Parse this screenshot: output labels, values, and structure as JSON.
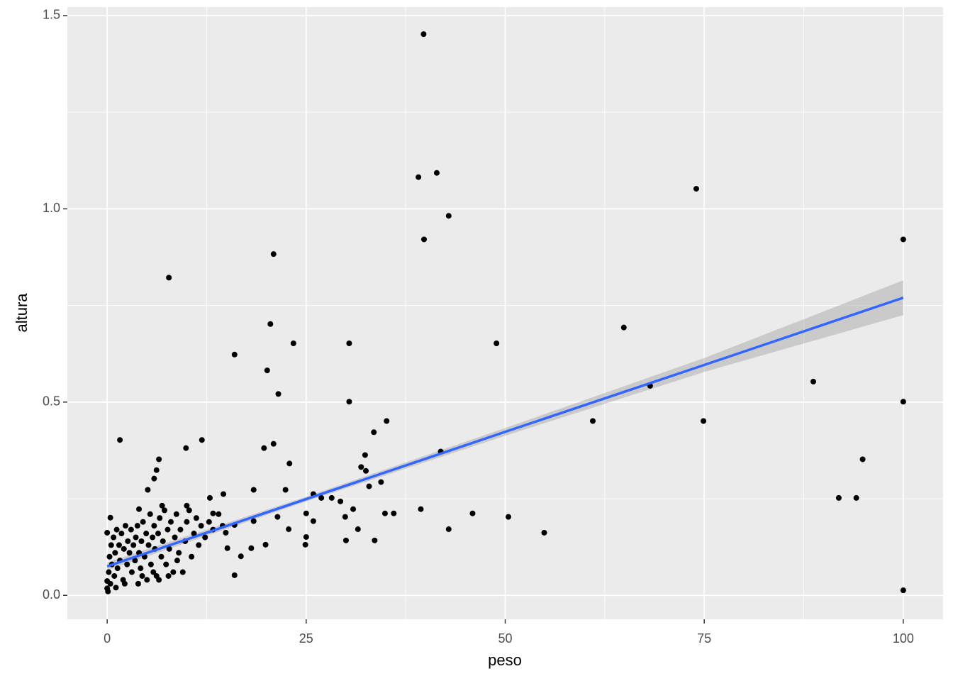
{
  "chart_data": {
    "type": "scatter",
    "x_label": "peso",
    "y_label": "altura",
    "xlim": [
      -5,
      105
    ],
    "ylim": [
      -0.062,
      1.522
    ],
    "xticks": [
      0,
      25,
      50,
      75,
      100
    ],
    "yticks": [
      {
        "value": 0,
        "label": "0.0"
      },
      0.5,
      {
        "value": 1,
        "label": "1.0"
      },
      1.5
    ],
    "x_minor_grid": [
      12.5,
      37.5,
      62.5,
      87.5
    ],
    "y_minor_grid": [
      0.25,
      0.75,
      1.25
    ],
    "grid": true,
    "color": "#000000",
    "x": [
      39.75,
      39.1,
      41.4,
      42.9,
      39.8,
      74.0,
      100,
      100,
      100,
      7.75,
      20.9,
      20.5,
      23.4,
      30.4,
      48.9,
      16.0,
      20.1,
      21.5,
      30.4,
      64.9,
      68.2,
      88.7,
      61.0,
      74.9,
      35.1,
      33.5,
      41.9,
      94.9,
      91.9,
      94.1,
      1.6,
      11.9,
      9.9,
      20.9,
      19.7,
      22.9,
      6.5,
      32.4,
      31.9,
      32.5,
      32.9,
      34.4,
      25.9,
      22.4,
      18.4,
      14.6,
      12.9,
      39.4,
      45.9,
      50.4,
      54.9,
      42.9,
      34.9,
      36.0,
      33.6,
      30.0,
      31.5,
      29.9,
      30.9,
      28.2,
      29.3,
      26.9,
      24.9,
      25.0,
      25.9,
      25.0,
      22.8,
      21.4,
      19.9,
      18.1,
      16.8,
      16.0,
      15.1,
      14.9,
      13.3,
      16.0,
      18.4,
      6.2,
      5.9,
      5.1,
      10.0,
      6.9,
      4.0,
      0.4,
      0,
      0,
      0,
      0.2,
      0.3,
      0.5,
      0.6,
      0.8,
      0.9,
      1.0,
      1.2,
      1.3,
      1.5,
      1.6,
      1.8,
      2.0,
      2.1,
      2.3,
      2.5,
      2.6,
      2.8,
      3.0,
      3.1,
      3.3,
      3.5,
      3.6,
      3.8,
      4.0,
      4.2,
      4.3,
      4.5,
      4.7,
      4.9,
      5.0,
      5.2,
      5.4,
      5.5,
      5.7,
      5.9,
      6.0,
      6.2,
      6.4,
      6.6,
      6.8,
      7.0,
      7.2,
      7.4,
      7.6,
      7.8,
      8.0,
      8.3,
      8.5,
      8.7,
      9.0,
      9.2,
      9.5,
      9.8,
      10.0,
      10.3,
      10.6,
      10.9,
      11.2,
      11.5,
      11.8,
      12.3,
      12.8,
      13.3,
      14.0,
      14.5,
      2.2,
      3.9,
      6.5,
      1.1,
      0.1,
      0.4,
      5.8,
      8.8,
      4.4,
      7.7
    ],
    "values": [
      1.452,
      1.082,
      1.093,
      0.982,
      0.921,
      1.052,
      0.921,
      0.501,
      0.013,
      0.822,
      0.883,
      0.702,
      0.652,
      0.652,
      0.652,
      0.623,
      0.582,
      0.521,
      0.501,
      0.693,
      0.542,
      0.553,
      0.451,
      0.451,
      0.451,
      0.422,
      0.372,
      0.352,
      0.252,
      0.252,
      0.402,
      0.402,
      0.381,
      0.392,
      0.381,
      0.341,
      0.352,
      0.363,
      0.332,
      0.322,
      0.282,
      0.293,
      0.262,
      0.273,
      0.273,
      0.262,
      0.252,
      0.223,
      0.212,
      0.203,
      0.162,
      0.171,
      0.212,
      0.212,
      0.142,
      0.142,
      0.171,
      0.203,
      0.223,
      0.252,
      0.243,
      0.252,
      0.131,
      0.212,
      0.192,
      0.151,
      0.171,
      0.203,
      0.131,
      0.122,
      0.101,
      0.052,
      0.122,
      0.162,
      0.212,
      0.182,
      0.192,
      0.324,
      0.302,
      0.273,
      0.232,
      0.232,
      0.223,
      0.201,
      0.162,
      0.037,
      0.018,
      0.06,
      0.1,
      0.13,
      0.08,
      0.15,
      0.05,
      0.11,
      0.17,
      0.07,
      0.13,
      0.09,
      0.16,
      0.04,
      0.12,
      0.18,
      0.08,
      0.14,
      0.11,
      0.17,
      0.06,
      0.13,
      0.09,
      0.15,
      0.18,
      0.11,
      0.07,
      0.14,
      0.19,
      0.1,
      0.16,
      0.04,
      0.13,
      0.21,
      0.08,
      0.15,
      0.18,
      0.12,
      0.05,
      0.16,
      0.2,
      0.1,
      0.14,
      0.22,
      0.08,
      0.17,
      0.12,
      0.19,
      0.06,
      0.15,
      0.21,
      0.11,
      0.17,
      0.06,
      0.14,
      0.19,
      0.22,
      0.1,
      0.16,
      0.2,
      0.13,
      0.18,
      0.15,
      0.19,
      0.17,
      0.21,
      0.18,
      0.03,
      0.03,
      0.04,
      0.02,
      0.01,
      0.03,
      0.06,
      0.09,
      0.05,
      0.05
    ],
    "fit": {
      "color": "#3366ff",
      "band_color": "#999999",
      "x": [
        0,
        25,
        50,
        75,
        100
      ],
      "values": [
        0.075,
        0.249,
        0.423,
        0.596,
        0.77
      ],
      "lower": [
        0.065,
        0.243,
        0.413,
        0.578,
        0.725
      ],
      "upper": [
        0.085,
        0.255,
        0.433,
        0.614,
        0.815
      ]
    }
  }
}
